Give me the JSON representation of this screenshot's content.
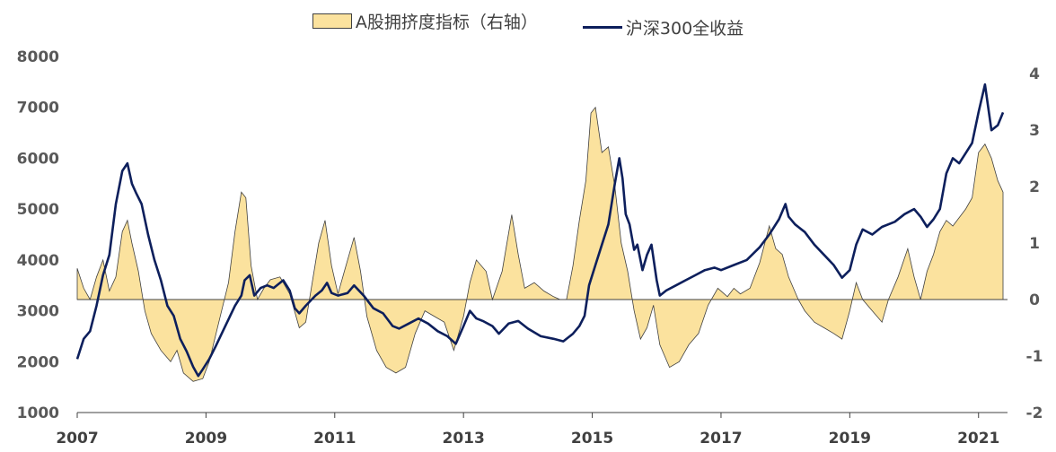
{
  "chart_data": {
    "type": "line+area",
    "title": "",
    "legend": [
      {
        "name": "A股拥挤度指标（右轴）",
        "kind": "area",
        "color": "#FBE29E",
        "border": "#404040"
      },
      {
        "name": "沪深300全收益",
        "kind": "line",
        "color": "#0D1F5C"
      }
    ],
    "x_range": [
      2007.0,
      2021.45
    ],
    "x_ticks": [
      "2007",
      "2009",
      "2011",
      "2013",
      "2015",
      "2017",
      "2019",
      "2021"
    ],
    "x_tick_values": [
      2007,
      2009,
      2011,
      2013,
      2015,
      2017,
      2019,
      2021
    ],
    "y_left": {
      "min": 1000,
      "max": 8000,
      "ticks": [
        "1000",
        "2000",
        "3000",
        "4000",
        "5000",
        "6000",
        "7000",
        "8000"
      ],
      "tick_values": [
        1000,
        2000,
        3000,
        4000,
        5000,
        6000,
        7000,
        8000
      ]
    },
    "y_right": {
      "min": -2,
      "max": 4.3,
      "ticks": [
        "-2",
        "-1",
        "0",
        "1",
        "2",
        "3",
        "4"
      ],
      "tick_values": [
        -2,
        -1,
        0,
        1,
        2,
        3,
        4
      ]
    },
    "series_line": {
      "name": "沪深300全收益",
      "points": [
        [
          2007.0,
          2050
        ],
        [
          2007.1,
          2450
        ],
        [
          2007.2,
          2600
        ],
        [
          2007.3,
          3100
        ],
        [
          2007.4,
          3700
        ],
        [
          2007.5,
          4100
        ],
        [
          2007.6,
          5100
        ],
        [
          2007.7,
          5750
        ],
        [
          2007.78,
          5900
        ],
        [
          2007.85,
          5500
        ],
        [
          2007.92,
          5300
        ],
        [
          2008.0,
          5100
        ],
        [
          2008.1,
          4500
        ],
        [
          2008.2,
          4000
        ],
        [
          2008.3,
          3600
        ],
        [
          2008.4,
          3100
        ],
        [
          2008.5,
          2900
        ],
        [
          2008.6,
          2450
        ],
        [
          2008.7,
          2200
        ],
        [
          2008.8,
          1900
        ],
        [
          2008.88,
          1720
        ],
        [
          2008.95,
          1850
        ],
        [
          2009.05,
          2050
        ],
        [
          2009.15,
          2300
        ],
        [
          2009.3,
          2700
        ],
        [
          2009.45,
          3100
        ],
        [
          2009.55,
          3300
        ],
        [
          2009.6,
          3600
        ],
        [
          2009.68,
          3700
        ],
        [
          2009.75,
          3300
        ],
        [
          2009.85,
          3450
        ],
        [
          2009.95,
          3500
        ],
        [
          2010.05,
          3450
        ],
        [
          2010.2,
          3600
        ],
        [
          2010.3,
          3400
        ],
        [
          2010.38,
          3050
        ],
        [
          2010.45,
          2950
        ],
        [
          2010.55,
          3100
        ],
        [
          2010.7,
          3300
        ],
        [
          2010.8,
          3400
        ],
        [
          2010.88,
          3550
        ],
        [
          2010.95,
          3350
        ],
        [
          2011.05,
          3300
        ],
        [
          2011.2,
          3350
        ],
        [
          2011.3,
          3500
        ],
        [
          2011.45,
          3300
        ],
        [
          2011.6,
          3050
        ],
        [
          2011.75,
          2950
        ],
        [
          2011.9,
          2700
        ],
        [
          2012.0,
          2650
        ],
        [
          2012.15,
          2750
        ],
        [
          2012.3,
          2850
        ],
        [
          2012.45,
          2750
        ],
        [
          2012.6,
          2600
        ],
        [
          2012.75,
          2500
        ],
        [
          2012.88,
          2350
        ],
        [
          2013.0,
          2700
        ],
        [
          2013.1,
          3000
        ],
        [
          2013.2,
          2850
        ],
        [
          2013.3,
          2800
        ],
        [
          2013.45,
          2700
        ],
        [
          2013.55,
          2550
        ],
        [
          2013.7,
          2750
        ],
        [
          2013.85,
          2800
        ],
        [
          2014.0,
          2650
        ],
        [
          2014.2,
          2500
        ],
        [
          2014.4,
          2450
        ],
        [
          2014.55,
          2400
        ],
        [
          2014.7,
          2550
        ],
        [
          2014.8,
          2700
        ],
        [
          2014.88,
          2900
        ],
        [
          2014.95,
          3500
        ],
        [
          2015.05,
          3900
        ],
        [
          2015.15,
          4300
        ],
        [
          2015.25,
          4700
        ],
        [
          2015.35,
          5500
        ],
        [
          2015.42,
          6000
        ],
        [
          2015.47,
          5600
        ],
        [
          2015.52,
          4900
        ],
        [
          2015.58,
          4700
        ],
        [
          2015.65,
          4200
        ],
        [
          2015.7,
          4300
        ],
        [
          2015.78,
          3800
        ],
        [
          2015.85,
          4100
        ],
        [
          2015.92,
          4300
        ],
        [
          2016.0,
          3600
        ],
        [
          2016.05,
          3300
        ],
        [
          2016.15,
          3400
        ],
        [
          2016.3,
          3500
        ],
        [
          2016.45,
          3600
        ],
        [
          2016.6,
          3700
        ],
        [
          2016.75,
          3800
        ],
        [
          2016.9,
          3850
        ],
        [
          2017.0,
          3800
        ],
        [
          2017.2,
          3900
        ],
        [
          2017.4,
          4000
        ],
        [
          2017.6,
          4250
        ],
        [
          2017.75,
          4500
        ],
        [
          2017.9,
          4800
        ],
        [
          2018.0,
          5100
        ],
        [
          2018.05,
          4850
        ],
        [
          2018.15,
          4700
        ],
        [
          2018.3,
          4550
        ],
        [
          2018.45,
          4300
        ],
        [
          2018.6,
          4100
        ],
        [
          2018.75,
          3900
        ],
        [
          2018.88,
          3650
        ],
        [
          2019.0,
          3800
        ],
        [
          2019.1,
          4300
        ],
        [
          2019.2,
          4600
        ],
        [
          2019.35,
          4500
        ],
        [
          2019.5,
          4650
        ],
        [
          2019.7,
          4750
        ],
        [
          2019.85,
          4900
        ],
        [
          2020.0,
          5000
        ],
        [
          2020.1,
          4850
        ],
        [
          2020.2,
          4650
        ],
        [
          2020.3,
          4800
        ],
        [
          2020.4,
          5000
        ],
        [
          2020.5,
          5700
        ],
        [
          2020.6,
          6000
        ],
        [
          2020.7,
          5900
        ],
        [
          2020.8,
          6100
        ],
        [
          2020.9,
          6300
        ],
        [
          2021.0,
          6900
        ],
        [
          2021.1,
          7450
        ],
        [
          2021.15,
          7000
        ],
        [
          2021.2,
          6550
        ],
        [
          2021.3,
          6650
        ],
        [
          2021.38,
          6900
        ]
      ]
    },
    "series_area": {
      "name": "A股拥挤度指标（右轴）",
      "points": [
        [
          2007.0,
          0.55
        ],
        [
          2007.1,
          0.2
        ],
        [
          2007.2,
          0.0
        ],
        [
          2007.3,
          0.4
        ],
        [
          2007.4,
          0.7
        ],
        [
          2007.5,
          0.15
        ],
        [
          2007.6,
          0.4
        ],
        [
          2007.7,
          1.2
        ],
        [
          2007.78,
          1.4
        ],
        [
          2007.85,
          1.0
        ],
        [
          2007.95,
          0.5
        ],
        [
          2008.05,
          -0.2
        ],
        [
          2008.15,
          -0.6
        ],
        [
          2008.3,
          -0.9
        ],
        [
          2008.45,
          -1.1
        ],
        [
          2008.55,
          -0.9
        ],
        [
          2008.65,
          -1.3
        ],
        [
          2008.8,
          -1.45
        ],
        [
          2008.95,
          -1.4
        ],
        [
          2009.05,
          -1.1
        ],
        [
          2009.2,
          -0.4
        ],
        [
          2009.35,
          0.3
        ],
        [
          2009.45,
          1.2
        ],
        [
          2009.55,
          1.9
        ],
        [
          2009.62,
          1.8
        ],
        [
          2009.7,
          0.6
        ],
        [
          2009.8,
          0.0
        ],
        [
          2009.9,
          0.2
        ],
        [
          2010.0,
          0.35
        ],
        [
          2010.15,
          0.4
        ],
        [
          2010.3,
          0.1
        ],
        [
          2010.45,
          -0.5
        ],
        [
          2010.55,
          -0.4
        ],
        [
          2010.65,
          0.3
        ],
        [
          2010.75,
          1.0
        ],
        [
          2010.85,
          1.4
        ],
        [
          2010.95,
          0.6
        ],
        [
          2011.05,
          0.1
        ],
        [
          2011.15,
          0.5
        ],
        [
          2011.3,
          1.1
        ],
        [
          2011.4,
          0.5
        ],
        [
          2011.5,
          -0.3
        ],
        [
          2011.65,
          -0.9
        ],
        [
          2011.8,
          -1.2
        ],
        [
          2011.95,
          -1.3
        ],
        [
          2012.1,
          -1.2
        ],
        [
          2012.25,
          -0.6
        ],
        [
          2012.4,
          -0.2
        ],
        [
          2012.55,
          -0.3
        ],
        [
          2012.7,
          -0.4
        ],
        [
          2012.85,
          -0.9
        ],
        [
          2013.0,
          -0.3
        ],
        [
          2013.1,
          0.3
        ],
        [
          2013.2,
          0.7
        ],
        [
          2013.35,
          0.5
        ],
        [
          2013.45,
          0.0
        ],
        [
          2013.6,
          0.5
        ],
        [
          2013.75,
          1.5
        ],
        [
          2013.85,
          0.8
        ],
        [
          2013.95,
          0.2
        ],
        [
          2014.1,
          0.3
        ],
        [
          2014.25,
          0.15
        ],
        [
          2014.4,
          0.05
        ],
        [
          2014.5,
          0.0
        ],
        [
          2014.6,
          0.0
        ],
        [
          2014.7,
          0.6
        ],
        [
          2014.8,
          1.4
        ],
        [
          2014.9,
          2.1
        ],
        [
          2014.98,
          3.3
        ],
        [
          2015.05,
          3.4
        ],
        [
          2015.15,
          2.6
        ],
        [
          2015.25,
          2.7
        ],
        [
          2015.35,
          2.0
        ],
        [
          2015.45,
          1.0
        ],
        [
          2015.55,
          0.5
        ],
        [
          2015.65,
          -0.2
        ],
        [
          2015.75,
          -0.7
        ],
        [
          2015.85,
          -0.5
        ],
        [
          2015.95,
          -0.1
        ],
        [
          2016.05,
          -0.8
        ],
        [
          2016.2,
          -1.2
        ],
        [
          2016.35,
          -1.1
        ],
        [
          2016.5,
          -0.8
        ],
        [
          2016.65,
          -0.6
        ],
        [
          2016.8,
          -0.1
        ],
        [
          2016.95,
          0.2
        ],
        [
          2017.1,
          0.05
        ],
        [
          2017.2,
          0.2
        ],
        [
          2017.3,
          0.1
        ],
        [
          2017.45,
          0.2
        ],
        [
          2017.6,
          0.65
        ],
        [
          2017.75,
          1.3
        ],
        [
          2017.85,
          0.9
        ],
        [
          2017.95,
          0.8
        ],
        [
          2018.05,
          0.4
        ],
        [
          2018.2,
          0.0
        ],
        [
          2018.3,
          -0.2
        ],
        [
          2018.45,
          -0.4
        ],
        [
          2018.6,
          -0.5
        ],
        [
          2018.75,
          -0.6
        ],
        [
          2018.88,
          -0.7
        ],
        [
          2019.0,
          -0.2
        ],
        [
          2019.1,
          0.3
        ],
        [
          2019.2,
          0.0
        ],
        [
          2019.35,
          -0.2
        ],
        [
          2019.5,
          -0.4
        ],
        [
          2019.6,
          0.0
        ],
        [
          2019.75,
          0.4
        ],
        [
          2019.9,
          0.9
        ],
        [
          2020.0,
          0.4
        ],
        [
          2020.1,
          0.0
        ],
        [
          2020.2,
          0.5
        ],
        [
          2020.3,
          0.8
        ],
        [
          2020.4,
          1.2
        ],
        [
          2020.5,
          1.4
        ],
        [
          2020.6,
          1.3
        ],
        [
          2020.7,
          1.45
        ],
        [
          2020.8,
          1.6
        ],
        [
          2020.9,
          1.8
        ],
        [
          2021.0,
          2.6
        ],
        [
          2021.1,
          2.75
        ],
        [
          2021.2,
          2.5
        ],
        [
          2021.3,
          2.1
        ],
        [
          2021.38,
          1.9
        ]
      ]
    }
  }
}
